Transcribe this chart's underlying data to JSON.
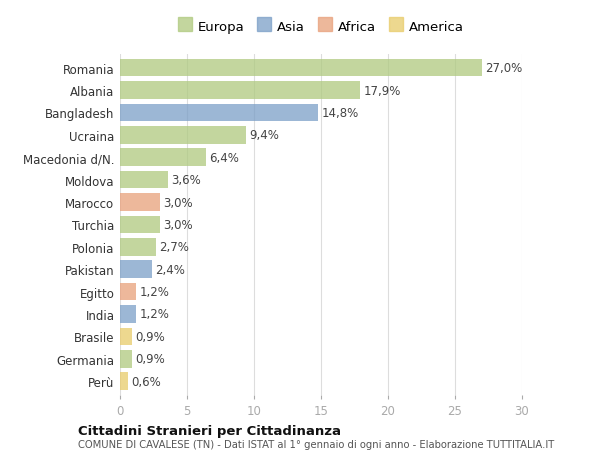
{
  "categories": [
    "Romania",
    "Albania",
    "Bangladesh",
    "Ucraina",
    "Macedonia d/N.",
    "Moldova",
    "Marocco",
    "Turchia",
    "Polonia",
    "Pakistan",
    "Egitto",
    "India",
    "Brasile",
    "Germania",
    "Perù"
  ],
  "values": [
    27.0,
    17.9,
    14.8,
    9.4,
    6.4,
    3.6,
    3.0,
    3.0,
    2.7,
    2.4,
    1.2,
    1.2,
    0.9,
    0.9,
    0.6
  ],
  "labels": [
    "27,0%",
    "17,9%",
    "14,8%",
    "9,4%",
    "6,4%",
    "3,6%",
    "3,0%",
    "3,0%",
    "2,7%",
    "2,4%",
    "1,2%",
    "1,2%",
    "0,9%",
    "0,9%",
    "0,6%"
  ],
  "continents": [
    "Europa",
    "Europa",
    "Asia",
    "Europa",
    "Europa",
    "Europa",
    "Africa",
    "Europa",
    "Europa",
    "Asia",
    "Africa",
    "Asia",
    "America",
    "Europa",
    "America"
  ],
  "colors": {
    "Europa": "#afc97e",
    "Asia": "#7b9fc7",
    "Africa": "#e8a07a",
    "America": "#e8cb6a"
  },
  "title": "Cittadini Stranieri per Cittadinanza",
  "subtitle": "COMUNE DI CAVALESE (TN) - Dati ISTAT al 1° gennaio di ogni anno - Elaborazione TUTTITALIA.IT",
  "xlim": [
    0,
    30
  ],
  "xticks": [
    0,
    5,
    10,
    15,
    20,
    25,
    30
  ],
  "background_color": "#ffffff",
  "grid_color": "#dddddd",
  "bar_alpha": 0.75,
  "bar_height": 0.78,
  "label_fontsize": 8.5,
  "tick_fontsize": 8.5,
  "legend_fontsize": 9.5
}
